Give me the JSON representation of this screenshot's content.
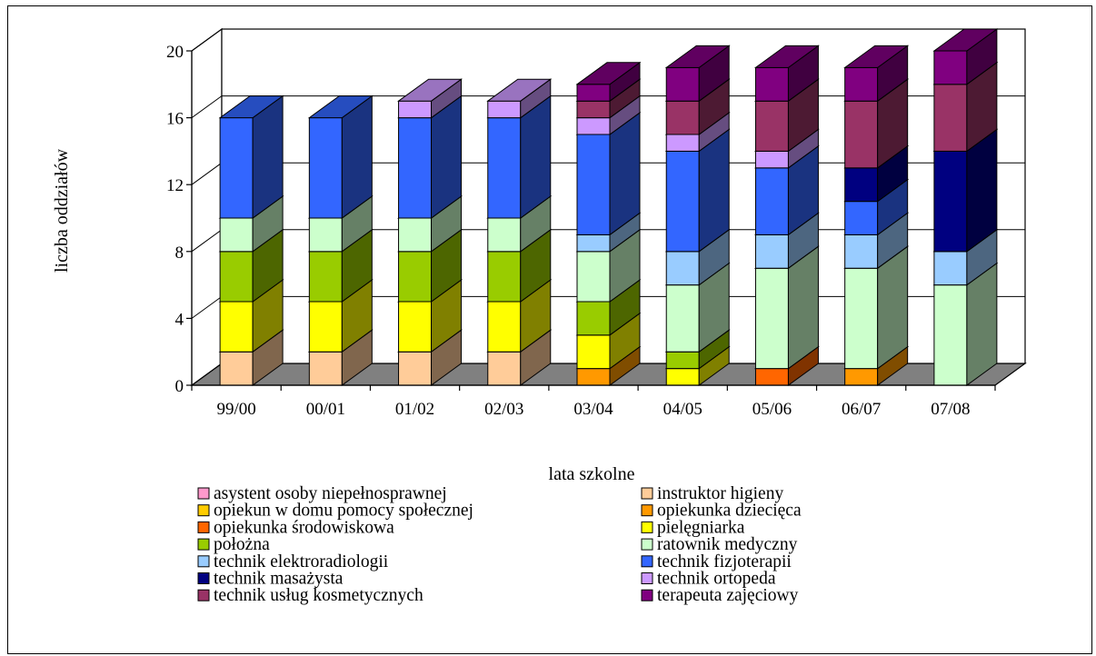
{
  "chart_data": {
    "type": "bar",
    "stacked": true,
    "three_d": true,
    "categories": [
      "99/00",
      "00/01",
      "01/02",
      "02/03",
      "03/04",
      "04/05",
      "05/06",
      "06/07",
      "07/08"
    ],
    "xlabel": "lata szkolne",
    "ylabel": "liczba oddziałów",
    "ylim": [
      0,
      20
    ],
    "yticks": [
      0,
      4,
      8,
      12,
      16,
      20
    ],
    "legend_position": "bottom",
    "series": [
      {
        "name": "asystent osoby niepełnosprawnej",
        "color": "#ff99cc",
        "values": [
          0,
          0,
          0,
          0,
          0,
          0,
          0,
          0,
          0
        ]
      },
      {
        "name": "instruktor higieny",
        "color": "#ffcc99",
        "values": [
          2,
          2,
          2,
          2,
          0,
          0,
          0,
          0,
          0
        ]
      },
      {
        "name": "opiekun w domu pomocy społecznej",
        "color": "#ffcc00",
        "values": [
          0,
          0,
          0,
          0,
          0,
          0,
          0,
          0,
          0
        ]
      },
      {
        "name": "opiekunka dziecięca",
        "color": "#ff9900",
        "values": [
          0,
          0,
          0,
          0,
          1,
          0,
          0,
          1,
          0
        ]
      },
      {
        "name": "opiekunka środowiskowa",
        "color": "#ff6600",
        "values": [
          0,
          0,
          0,
          0,
          0,
          0,
          1,
          0,
          0
        ]
      },
      {
        "name": "pielęgniarka",
        "color": "#ffff00",
        "values": [
          3,
          3,
          3,
          3,
          2,
          1,
          0,
          0,
          0
        ]
      },
      {
        "name": "położna",
        "color": "#99cc00",
        "values": [
          3,
          3,
          3,
          3,
          2,
          1,
          0,
          0,
          0
        ]
      },
      {
        "name": "ratownik medyczny",
        "color": "#ccffcc",
        "values": [
          2,
          2,
          2,
          2,
          3,
          4,
          6,
          6,
          6
        ]
      },
      {
        "name": "technik elektroradiologii",
        "color": "#99ccff",
        "values": [
          0,
          0,
          0,
          0,
          1,
          2,
          2,
          2,
          2
        ]
      },
      {
        "name": "technik fizjoterapii",
        "color": "#3366ff",
        "values": [
          6,
          6,
          6,
          6,
          6,
          6,
          4,
          2,
          0
        ]
      },
      {
        "name": "technik masażysta",
        "color": "#000080",
        "values": [
          0,
          0,
          0,
          0,
          0,
          0,
          0,
          2,
          6
        ]
      },
      {
        "name": "technik ortopeda",
        "color": "#cc99ff",
        "values": [
          0,
          0,
          1,
          1,
          1,
          1,
          1,
          0,
          0
        ]
      },
      {
        "name": "technik usług kosmetycznych",
        "color": "#993366",
        "values": [
          0,
          0,
          0,
          0,
          1,
          2,
          3,
          4,
          4
        ]
      },
      {
        "name": "terapeuta zajęciowy",
        "color": "#800080",
        "values": [
          0,
          0,
          0,
          0,
          1,
          2,
          2,
          2,
          2
        ]
      }
    ]
  }
}
